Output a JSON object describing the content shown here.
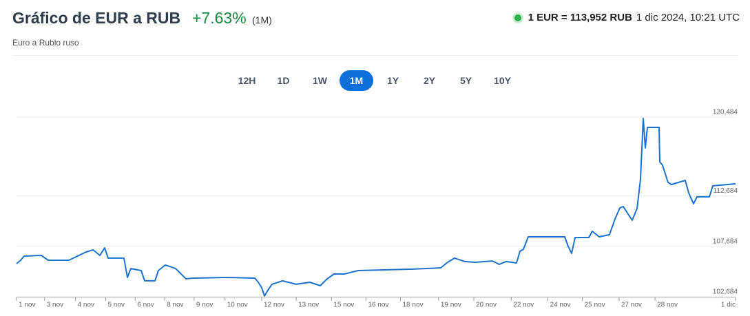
{
  "header": {
    "title": "Gráfico de EUR a RUB",
    "change": "+7.63%",
    "period": "(1M)",
    "subtitle": "Euro a Rublo ruso",
    "rate": "1 EUR = 113,952 RUB",
    "timestamp": "1 dic 2024, 10:21 UTC"
  },
  "range_buttons": {
    "labels": [
      "12H",
      "1D",
      "1W",
      "1M",
      "1Y",
      "2Y",
      "5Y",
      "10Y"
    ],
    "active": "1M"
  },
  "chart_data": {
    "type": "line",
    "x": [
      0,
      0.57,
      1.05,
      3.45,
      4.41,
      7.28,
      9.67,
      10.63,
      11.59,
      12.26,
      12.74,
      14.94,
      15.42,
      15.9,
      17.34,
      17.82,
      19.25,
      19.73,
      20.69,
      22.13,
      23.56,
      24.52,
      29.31,
      33.14,
      33.62,
      34.1,
      34.48,
      35.06,
      35.54,
      36.97,
      38.89,
      40.8,
      42.24,
      43.2,
      44.16,
      45.59,
      47.51,
      55.17,
      59.0,
      59.96,
      60.92,
      62.36,
      63.79,
      66.19,
      67.14,
      68.1,
      69.54,
      70.02,
      70.5,
      71.17,
      73.37,
      76.25,
      76.72,
      77.2,
      77.68,
      79.6,
      80.08,
      81.03,
      82.47,
      83.24,
      83.91,
      84.39,
      84.87,
      85.63,
      86.3,
      86.78,
      87.16,
      87.45,
      87.74,
      89.37,
      89.46,
      89.85,
      90.61,
      91.09,
      92.05,
      93.01,
      93.49,
      94.16,
      94.64,
      96.36,
      96.84,
      100
    ],
    "series": [
      {
        "name": "EUR/RUB",
        "color": "#1a73d1",
        "values": [
          105.96,
          106.3,
          106.71,
          106.78,
          106.3,
          106.3,
          107.12,
          107.33,
          106.78,
          107.53,
          106.51,
          106.51,
          104.6,
          105.48,
          105.28,
          104.26,
          104.26,
          105.28,
          105.83,
          105.48,
          104.46,
          104.53,
          104.6,
          104.53,
          104.12,
          103.58,
          102.76,
          103.44,
          103.92,
          104.26,
          103.92,
          104.12,
          103.78,
          104.46,
          104.94,
          104.94,
          105.28,
          105.42,
          105.55,
          106.1,
          106.51,
          106.17,
          106.1,
          106.23,
          105.89,
          106.17,
          106.03,
          107.19,
          107.39,
          108.62,
          108.62,
          108.62,
          107.67,
          106.98,
          108.55,
          108.55,
          109.17,
          108.62,
          108.83,
          110.39,
          111.48,
          111.62,
          111.08,
          110.26,
          111.42,
          114.35,
          120.35,
          117.42,
          119.46,
          119.46,
          116.05,
          115.71,
          114.01,
          113.8,
          114.01,
          114.21,
          112.98,
          111.89,
          112.58,
          112.58,
          113.67,
          113.87
        ]
      }
    ],
    "xlim": [
      0,
      100
    ],
    "xticks": [
      {
        "value": 0,
        "label": "1 nov"
      },
      {
        "value": 3.9,
        "label": "3 nov"
      },
      {
        "value": 8.2,
        "label": "4 nov"
      },
      {
        "value": 12.4,
        "label": "5 nov"
      },
      {
        "value": 16.5,
        "label": "6 nov"
      },
      {
        "value": 20.6,
        "label": "8 nov"
      },
      {
        "value": 24.7,
        "label": "9 nov"
      },
      {
        "value": 29.0,
        "label": "10 nov"
      },
      {
        "value": 34.1,
        "label": "12 nov"
      },
      {
        "value": 38.9,
        "label": "13 nov"
      },
      {
        "value": 43.8,
        "label": "15 nov"
      },
      {
        "value": 48.6,
        "label": "16 nov"
      },
      {
        "value": 53.4,
        "label": "18 nov"
      },
      {
        "value": 58.7,
        "label": "19 nov"
      },
      {
        "value": 63.6,
        "label": "20 nov"
      },
      {
        "value": 68.8,
        "label": "22 nov"
      },
      {
        "value": 73.9,
        "label": "24 nov"
      },
      {
        "value": 78.7,
        "label": "25 nov"
      },
      {
        "value": 83.8,
        "label": "27 nov"
      },
      {
        "value": 88.8,
        "label": "28 nov"
      },
      {
        "value": 100,
        "label": "1 dic"
      }
    ],
    "ylim": [
      102.62,
      120.484
    ],
    "yticks": [
      {
        "value": 102.684,
        "label": "102,684"
      },
      {
        "value": 107.684,
        "label": "107,684"
      },
      {
        "value": 112.684,
        "label": "112,684"
      },
      {
        "value": 120.484,
        "label": "120,484"
      }
    ],
    "grid": true
  }
}
